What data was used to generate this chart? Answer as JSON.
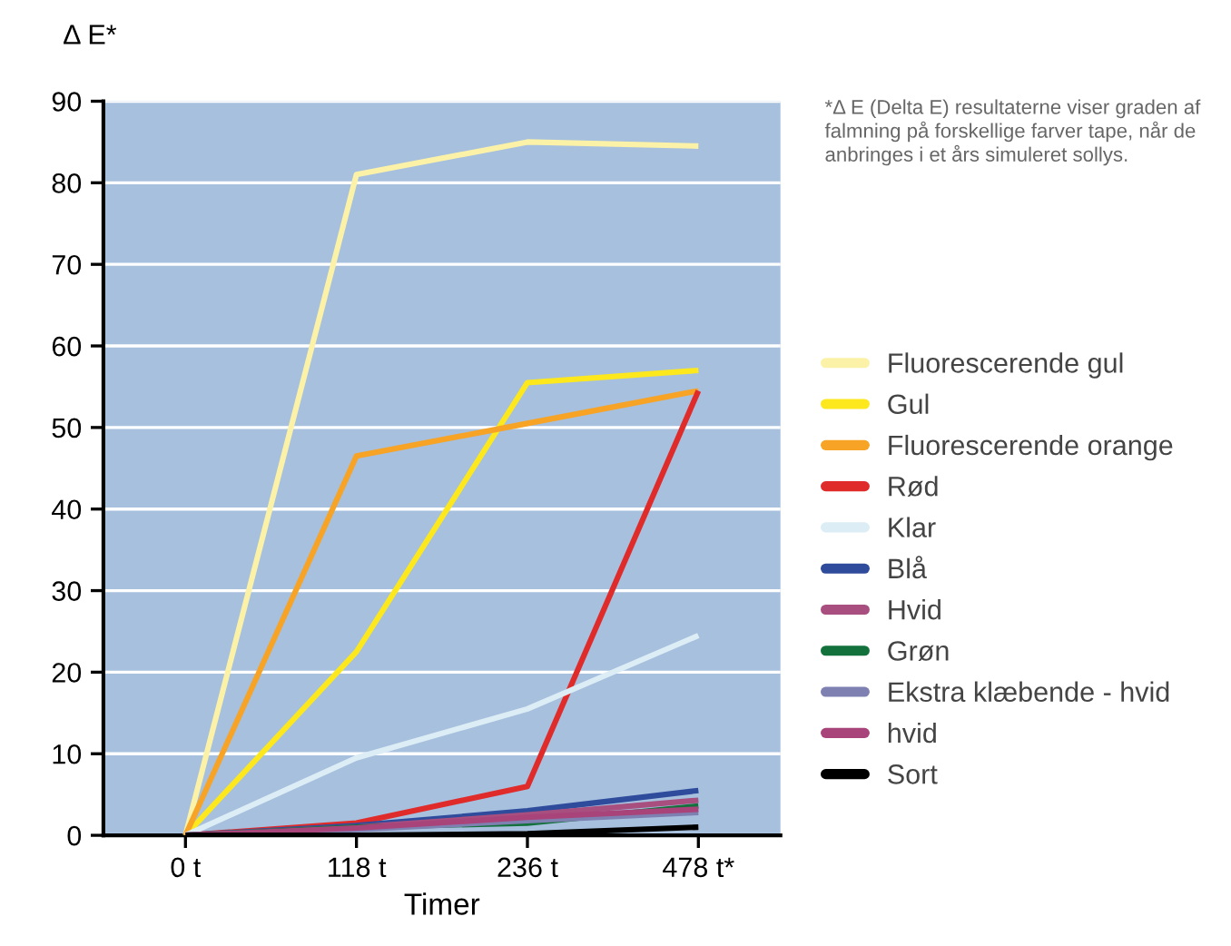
{
  "chart_data": {
    "type": "line",
    "ylabel": "Δ E*",
    "xlabel": "Timer",
    "categories": [
      "0 t",
      "118 t",
      "236 t",
      "478 t*"
    ],
    "ylim": [
      0,
      90
    ],
    "yticks": [
      0,
      10,
      20,
      30,
      40,
      50,
      60,
      70,
      80,
      90
    ],
    "grid": "y",
    "legend": "right",
    "marker": "none",
    "line_style": "solid",
    "annotations": [
      "*Δ E (Delta E) resultaterne viser graden af falmning på forskellige farver tape, når de anbringes i et års simuleret sollys."
    ],
    "series": [
      {
        "name": "Fluorescerende gul",
        "color": "#fbf2a8",
        "values": [
          0,
          81,
          85,
          84.5
        ]
      },
      {
        "name": "Gul",
        "color": "#fce81c",
        "values": [
          0,
          22.5,
          55.5,
          57
        ]
      },
      {
        "name": "Fluorescerende orange",
        "color": "#f7a325",
        "values": [
          0,
          46.5,
          50.5,
          54.5
        ]
      },
      {
        "name": "Rød",
        "color": "#e02b2b",
        "values": [
          0,
          1.5,
          6,
          54.5
        ]
      },
      {
        "name": "Klar",
        "color": "#dcedf5",
        "values": [
          0,
          9.5,
          15.5,
          24.5
        ]
      },
      {
        "name": "Blå",
        "color": "#2f4b9c",
        "values": [
          0,
          1.2,
          3,
          5.5
        ]
      },
      {
        "name": "Hvid",
        "color": "#a84f80",
        "values": [
          0,
          1,
          2.5,
          4.3
        ]
      },
      {
        "name": "Grøn",
        "color": "#13713c",
        "values": [
          0,
          1,
          1.5,
          3.6
        ]
      },
      {
        "name": "Ekstra klæbende - hvid",
        "color": "#7f80b2",
        "values": [
          0,
          0.7,
          1.8,
          2.8
        ]
      },
      {
        "name": "hvid",
        "color": "#a8447a",
        "values": [
          0,
          0.9,
          2.2,
          3.2
        ]
      },
      {
        "name": "Sort",
        "color": "#000000",
        "values": [
          0,
          0,
          0.2,
          1
        ]
      }
    ]
  }
}
